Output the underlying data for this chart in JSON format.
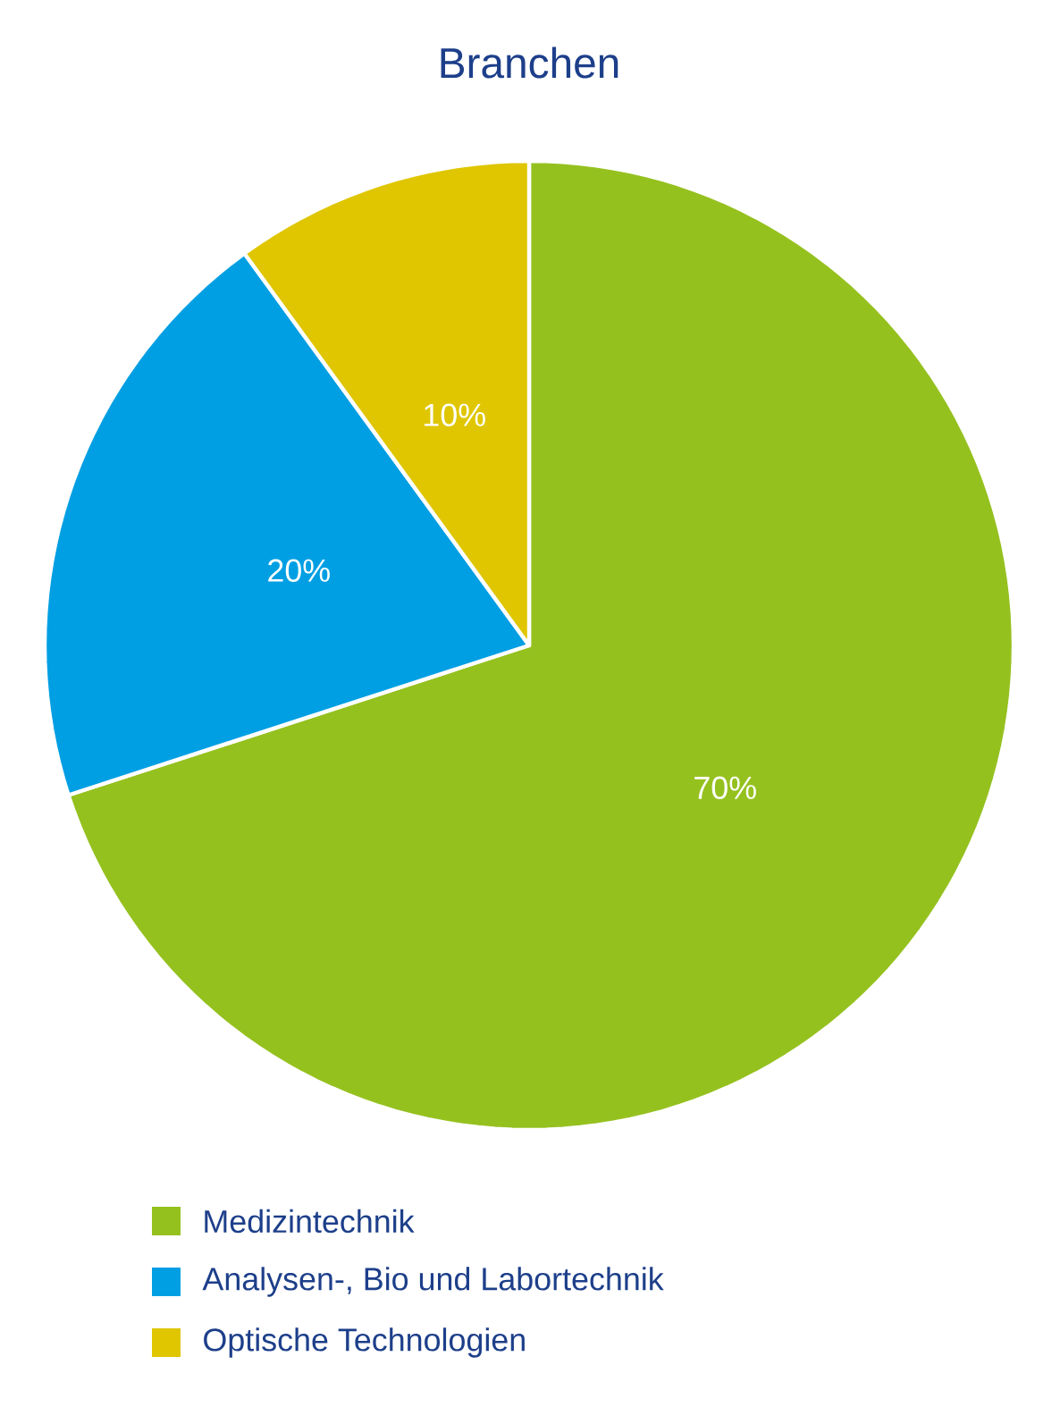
{
  "chart_data": {
    "type": "pie",
    "title": "Branchen",
    "categories": [
      "Medizintechnik",
      "Analysen-, Bio und Labortechnik",
      "Optische Technologien"
    ],
    "values": [
      70,
      20,
      10
    ],
    "colors": [
      "#95c11f",
      "#009fe3",
      "#dfc600"
    ],
    "value_labels": [
      "70%",
      "20%",
      "10%"
    ],
    "legend": "bottom"
  }
}
